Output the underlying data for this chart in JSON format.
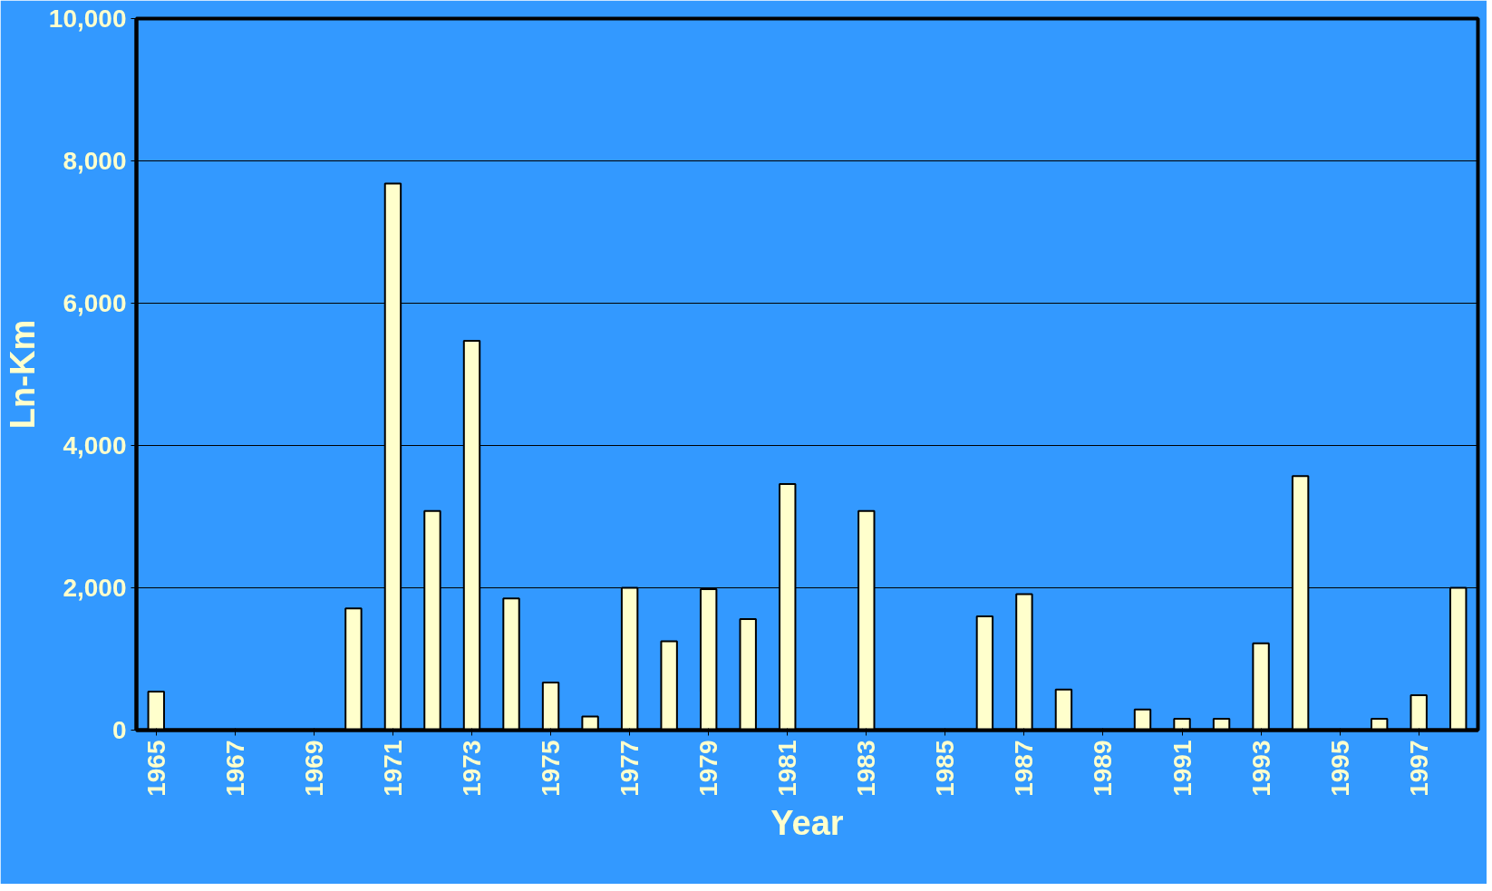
{
  "chart_data": {
    "type": "bar",
    "xlabel": "Year",
    "ylabel": "Ln-Km",
    "categories": [
      "1965",
      null,
      "1967",
      null,
      "1969",
      null,
      "1971",
      null,
      "1973",
      null,
      "1975",
      null,
      "1977",
      null,
      "1979",
      null,
      "1981",
      null,
      "1983",
      null,
      "1985",
      null,
      "1987",
      null,
      "1989",
      null,
      "1991",
      null,
      "1993",
      null,
      "1995",
      null,
      "1997",
      null
    ],
    "series": [
      {
        "color": "#ffffcc",
        "values": [
          540,
          null,
          null,
          null,
          null,
          1710,
          7680,
          3080,
          5470,
          1850,
          670,
          190,
          2000,
          1250,
          1980,
          1560,
          3460,
          null,
          3080,
          null,
          null,
          1600,
          1910,
          570,
          null,
          290,
          160,
          160,
          1220,
          3570,
          null,
          160,
          490,
          2000
        ]
      }
    ],
    "ylim": [
      0,
      10000
    ],
    "yticks": [
      {
        "value": 0,
        "label": "0"
      },
      {
        "value": 2000,
        "label": "2,000"
      },
      {
        "value": 4000,
        "label": "4,000"
      },
      {
        "value": 6000,
        "label": "6,000"
      },
      {
        "value": 8000,
        "label": "8,000"
      },
      {
        "value": 10000,
        "label": "10,000"
      }
    ],
    "grid": "y"
  }
}
